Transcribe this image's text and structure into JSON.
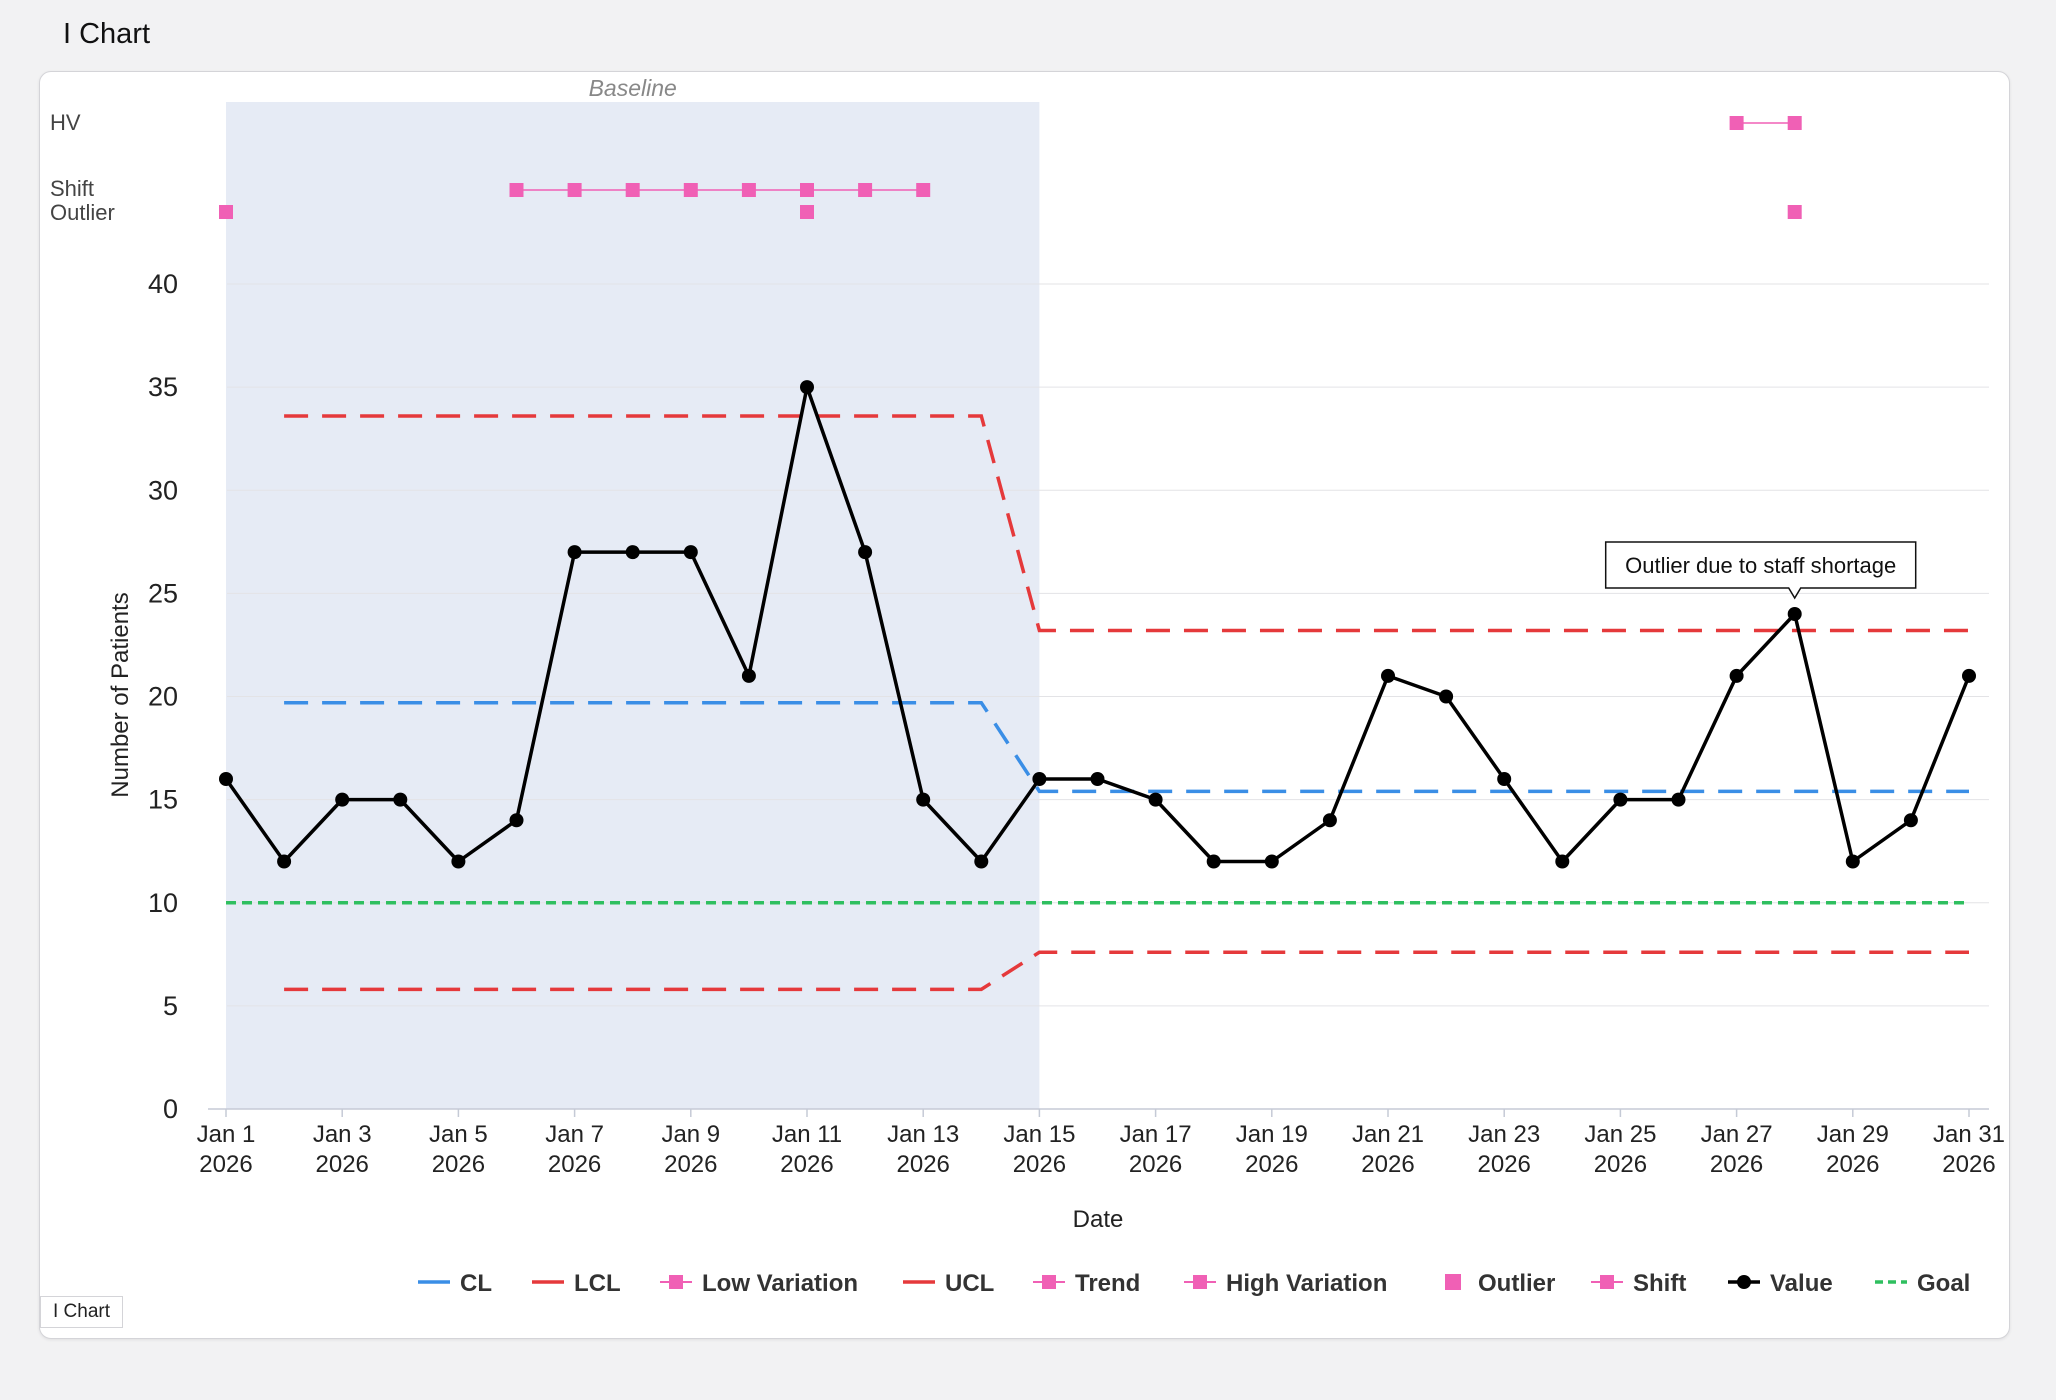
{
  "page_title": "I Chart",
  "bottom_tab": "I Chart",
  "colors": {
    "cl": "#3a8ee6",
    "limits": "#e5393b",
    "signal": "#f060b5",
    "value": "#000000",
    "goal": "#2fbf5f",
    "baseline_band": "#e6ebf5"
  },
  "chart_data": {
    "type": "line",
    "xlabel": "Date",
    "ylabel": "Number of Patients",
    "ylim": [
      0,
      42
    ],
    "yticks": [
      0,
      5,
      10,
      15,
      20,
      25,
      30,
      35,
      40
    ],
    "x": [
      "2026-01-01",
      "2026-01-02",
      "2026-01-03",
      "2026-01-04",
      "2026-01-05",
      "2026-01-06",
      "2026-01-07",
      "2026-01-08",
      "2026-01-09",
      "2026-01-10",
      "2026-01-11",
      "2026-01-12",
      "2026-01-13",
      "2026-01-14",
      "2026-01-15",
      "2026-01-16",
      "2026-01-17",
      "2026-01-18",
      "2026-01-19",
      "2026-01-20",
      "2026-01-21",
      "2026-01-22",
      "2026-01-23",
      "2026-01-24",
      "2026-01-25",
      "2026-01-26",
      "2026-01-27",
      "2026-01-28",
      "2026-01-29",
      "2026-01-30",
      "2026-01-31"
    ],
    "xticks": [
      {
        "date": "2026-01-01",
        "line1": "Jan 1",
        "line2": "2026"
      },
      {
        "date": "2026-01-03",
        "line1": "Jan 3",
        "line2": "2026"
      },
      {
        "date": "2026-01-05",
        "line1": "Jan 5",
        "line2": "2026"
      },
      {
        "date": "2026-01-07",
        "line1": "Jan 7",
        "line2": "2026"
      },
      {
        "date": "2026-01-09",
        "line1": "Jan 9",
        "line2": "2026"
      },
      {
        "date": "2026-01-11",
        "line1": "Jan 11",
        "line2": "2026"
      },
      {
        "date": "2026-01-13",
        "line1": "Jan 13",
        "line2": "2026"
      },
      {
        "date": "2026-01-15",
        "line1": "Jan 15",
        "line2": "2026"
      },
      {
        "date": "2026-01-17",
        "line1": "Jan 17",
        "line2": "2026"
      },
      {
        "date": "2026-01-19",
        "line1": "Jan 19",
        "line2": "2026"
      },
      {
        "date": "2026-01-21",
        "line1": "Jan 21",
        "line2": "2026"
      },
      {
        "date": "2026-01-23",
        "line1": "Jan 23",
        "line2": "2026"
      },
      {
        "date": "2026-01-25",
        "line1": "Jan 25",
        "line2": "2026"
      },
      {
        "date": "2026-01-27",
        "line1": "Jan 27",
        "line2": "2026"
      },
      {
        "date": "2026-01-29",
        "line1": "Jan 29",
        "line2": "2026"
      },
      {
        "date": "2026-01-31",
        "line1": "Jan 31",
        "line2": "2026"
      }
    ],
    "values": [
      16,
      12,
      15,
      15,
      12,
      14,
      27,
      27,
      27,
      21,
      35,
      27,
      15,
      12,
      16,
      16,
      15,
      12,
      12,
      14,
      21,
      20,
      16,
      12,
      15,
      15,
      21,
      24,
      12,
      14,
      21
    ],
    "baseline": {
      "label": "Baseline",
      "start": "2026-01-01",
      "end": "2026-01-15"
    },
    "series": [
      {
        "name": "CL",
        "segments": [
          {
            "from": "2026-01-02",
            "to": "2026-01-14",
            "value": 19.7
          },
          {
            "from": "2026-01-15",
            "to": "2026-01-31",
            "value": 15.4
          }
        ]
      },
      {
        "name": "UCL",
        "segments": [
          {
            "from": "2026-01-02",
            "to": "2026-01-14",
            "value": 33.6
          },
          {
            "from": "2026-01-15",
            "to": "2026-01-31",
            "value": 23.2
          }
        ]
      },
      {
        "name": "LCL",
        "segments": [
          {
            "from": "2026-01-02",
            "to": "2026-01-14",
            "value": 5.8
          },
          {
            "from": "2026-01-15",
            "to": "2026-01-31",
            "value": 7.6
          }
        ]
      },
      {
        "name": "Goal",
        "segments": [
          {
            "from": "2026-01-01",
            "to": "2026-01-31",
            "value": 10
          }
        ]
      }
    ],
    "signal_rows": [
      {
        "label": "HV",
        "runs": [
          [
            "2026-01-27",
            "2026-01-28"
          ]
        ]
      },
      {
        "label": "Shift",
        "runs": [
          [
            "2026-01-06",
            "2026-01-13"
          ]
        ]
      },
      {
        "label": "Outlier",
        "runs": [
          [
            "2026-01-01"
          ],
          [
            "2026-01-11"
          ],
          [
            "2026-01-28"
          ]
        ]
      }
    ],
    "annotations": [
      {
        "date": "2026-01-28",
        "text": "Outlier due to staff shortage"
      }
    ],
    "legend": [
      {
        "name": "CL",
        "kind": "line"
      },
      {
        "name": "LCL",
        "kind": "line"
      },
      {
        "name": "Low Variation",
        "kind": "line-square"
      },
      {
        "name": "UCL",
        "kind": "line"
      },
      {
        "name": "Trend",
        "kind": "line-square"
      },
      {
        "name": "High Variation",
        "kind": "line-square"
      },
      {
        "name": "Outlier",
        "kind": "square"
      },
      {
        "name": "Shift",
        "kind": "line-square"
      },
      {
        "name": "Value",
        "kind": "line-dot"
      },
      {
        "name": "Goal",
        "kind": "dash"
      }
    ]
  }
}
